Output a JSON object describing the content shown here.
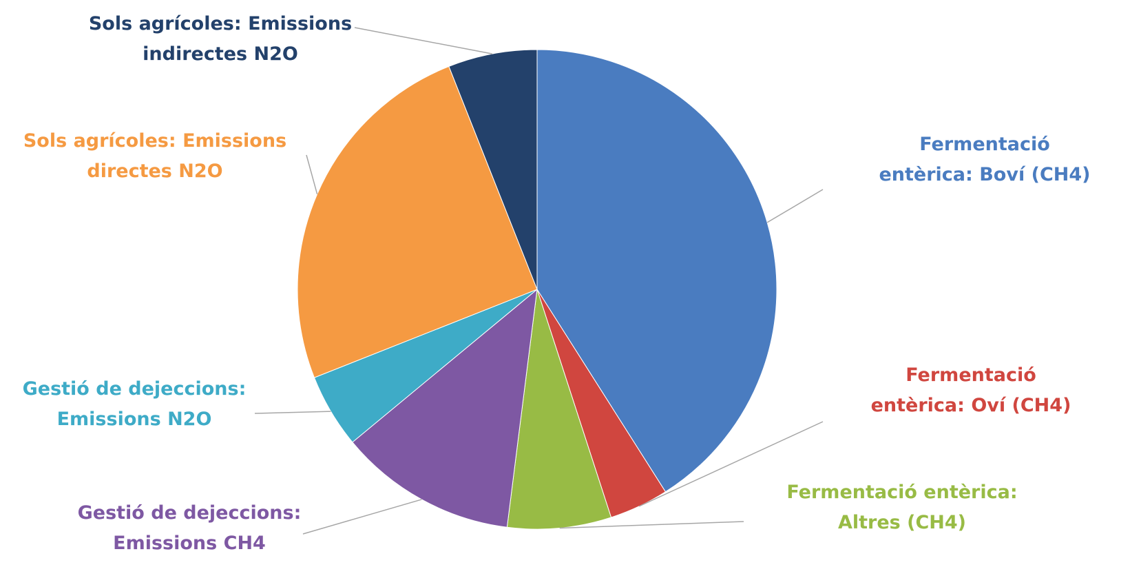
{
  "chart_data": {
    "type": "pie",
    "categories": [
      "Fermentació entèrica: Boví (CH4)",
      "Fermentació entèrica: Oví (CH4)",
      "Fermentació entèrica: Altres (CH4)",
      "Gestió de dejeccions: Emissions CH4",
      "Gestió de dejeccions: Emissions N2O",
      "Sols agrícoles: Emissions directes N2O",
      "Sols agrícoles: Emissions indirectes N2O"
    ],
    "values": [
      41,
      4,
      7,
      12,
      5,
      25,
      6
    ],
    "colors": [
      "#4a7cc0",
      "#d0463f",
      "#98bb45",
      "#7e58a3",
      "#3eabc7",
      "#f59a42",
      "#23416b"
    ]
  }
}
